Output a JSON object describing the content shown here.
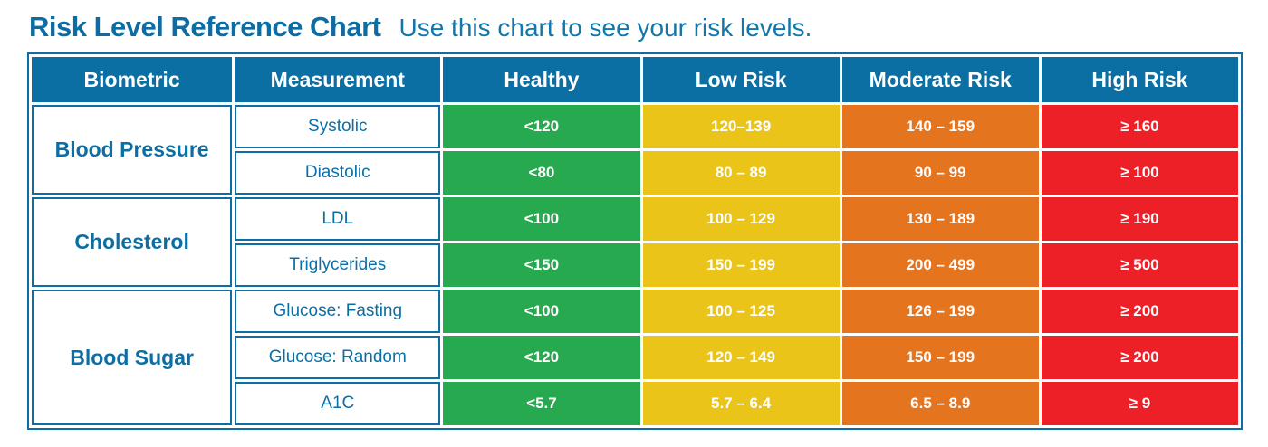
{
  "title": "Risk Level Reference Chart",
  "subtitle": "Use this chart to see your risk levels.",
  "colors": {
    "header_blue": "#0b6fa4",
    "text_blue": "#0d6da3",
    "healthy_green": "#26a94f",
    "low_risk_yellow": "#eac418",
    "moderate_risk_orange": "#e5741f",
    "high_risk_red": "#ed2027"
  },
  "table": {
    "headers": [
      "Biometric",
      "Measurement",
      "Healthy",
      "Low Risk",
      "Moderate Risk",
      "High Risk"
    ],
    "groups": [
      {
        "name": "Blood Pressure",
        "rows": [
          {
            "measurement": "Systolic",
            "healthy": "<120",
            "low": "120–139",
            "moderate": "140 – 159",
            "high": "≥ 160"
          },
          {
            "measurement": "Diastolic",
            "healthy": "<80",
            "low": "80 – 89",
            "moderate": "90 – 99",
            "high": "≥ 100"
          }
        ]
      },
      {
        "name": "Cholesterol",
        "rows": [
          {
            "measurement": "LDL",
            "healthy": "<100",
            "low": "100 – 129",
            "moderate": "130 – 189",
            "high": "≥ 190"
          },
          {
            "measurement": "Triglycerides",
            "healthy": "<150",
            "low": "150 – 199",
            "moderate": "200 – 499",
            "high": "≥ 500"
          }
        ]
      },
      {
        "name": "Blood Sugar",
        "rows": [
          {
            "measurement": "Glucose: Fasting",
            "healthy": "<100",
            "low": "100 – 125",
            "moderate": "126 – 199",
            "high": "≥ 200"
          },
          {
            "measurement": "Glucose: Random",
            "healthy": "<120",
            "low": "120 – 149",
            "moderate": "150 – 199",
            "high": "≥ 200"
          },
          {
            "measurement": "A1C",
            "healthy": "<5.7",
            "low": "5.7 – 6.4",
            "moderate": "6.5 – 8.9",
            "high": "≥ 9"
          }
        ]
      }
    ]
  },
  "chart_data": {
    "type": "table",
    "title": "Risk Level Reference Chart",
    "subtitle": "Use this chart to see your risk levels.",
    "columns": [
      "Biometric",
      "Measurement",
      "Healthy",
      "Low Risk",
      "Moderate Risk",
      "High Risk"
    ],
    "rows": [
      [
        "Blood Pressure",
        "Systolic",
        "<120",
        "120–139",
        "140 – 159",
        "≥ 160"
      ],
      [
        "Blood Pressure",
        "Diastolic",
        "<80",
        "80 – 89",
        "90 – 99",
        "≥ 100"
      ],
      [
        "Cholesterol",
        "LDL",
        "<100",
        "100 – 129",
        "130 – 189",
        "≥ 190"
      ],
      [
        "Cholesterol",
        "Triglycerides",
        "<150",
        "150 – 199",
        "200 – 499",
        "≥ 500"
      ],
      [
        "Blood Sugar",
        "Glucose: Fasting",
        "<100",
        "100 – 125",
        "126 – 199",
        "≥ 200"
      ],
      [
        "Blood Sugar",
        "Glucose: Random",
        "<120",
        "120 – 149",
        "150 – 199",
        "≥ 200"
      ],
      [
        "Blood Sugar",
        "A1C",
        "<5.7",
        "5.7 – 6.4",
        "6.5 – 8.9",
        "≥ 9"
      ]
    ],
    "legend_colors": {
      "Healthy": "#26a94f",
      "Low Risk": "#eac418",
      "Moderate Risk": "#e5741f",
      "High Risk": "#ed2027"
    }
  }
}
